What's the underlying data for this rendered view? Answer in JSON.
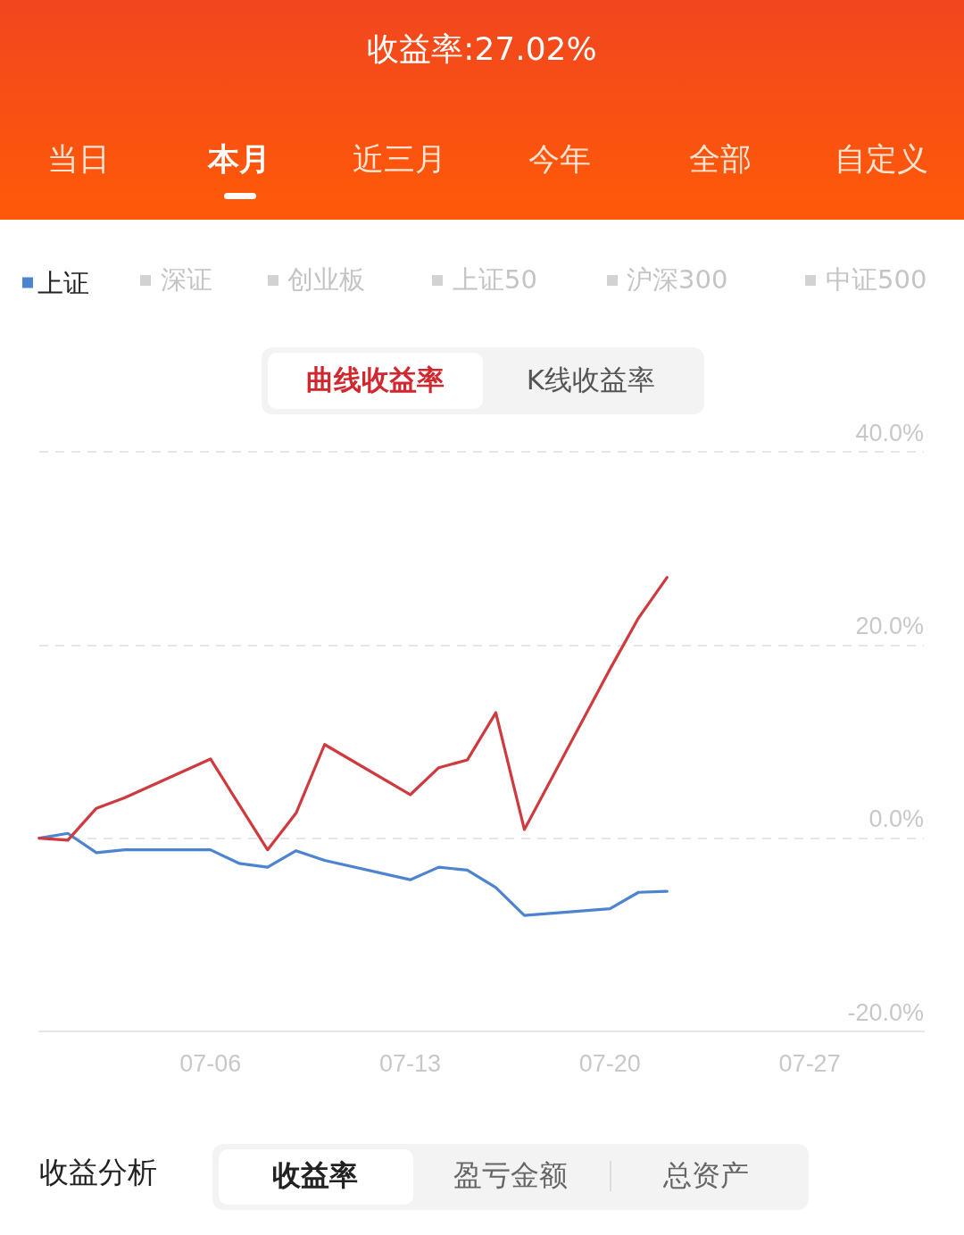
{
  "chart_data": {
    "type": "line",
    "title": "收益率:27.02%",
    "x": [
      "--06-30",
      "--07-01",
      "--07-02",
      "--07-03",
      "--07-06",
      "--07-07",
      "--07-08",
      "--07-09",
      "--07-10",
      "--07-13",
      "--07-14",
      "--07-15",
      "--07-16",
      "--07-17",
      "--07-20",
      "--07-21",
      "--07-22"
    ],
    "series": [
      {
        "name": "上证",
        "color": "#4d84d0",
        "values": [
          0,
          0.5,
          -1.5,
          -1.2,
          -1.2,
          -2.6,
          -3.0,
          -1.3,
          -2.3,
          -4.3,
          -3.0,
          -3.3,
          -5.1,
          -8.0,
          -7.3,
          -5.6,
          -5.5
        ]
      },
      {
        "color": "#cf3a3e",
        "values": [
          0,
          -0.2,
          3.1,
          4.2,
          8.2,
          3.5,
          -1.2,
          2.6,
          9.7,
          4.5,
          7.3,
          8.1,
          13.0,
          0.9,
          17.5,
          22.8,
          27.0
        ]
      }
    ],
    "xlim": [
      "--06-30",
      "--07-31"
    ],
    "xticks": [
      {
        "value": "--07-06",
        "label": "07-06"
      },
      {
        "value": "--07-13",
        "label": "07-13"
      },
      {
        "value": "--07-20",
        "label": "07-20"
      },
      {
        "value": "--07-27",
        "label": "07-27"
      }
    ],
    "ylim": [
      -20,
      40
    ],
    "yticks": [
      {
        "value": -20,
        "label": "-20.0%"
      },
      {
        "value": 0,
        "label": "0.0%"
      },
      {
        "value": 20,
        "label": "20.0%"
      },
      {
        "value": 40,
        "label": "40.0%"
      }
    ],
    "grid": "y",
    "legend": "top left",
    "marker": "none",
    "line_style": "solid",
    "annotations": [
      "当日",
      "本月",
      "近三月",
      "今年",
      "全部",
      "自定义",
      "深证",
      "创业板",
      "上证50",
      "沪深300",
      "中证500",
      "曲线收益率",
      "K线收益率",
      "收益分析",
      "收益率",
      "盈亏金额",
      "总资产"
    ]
  }
}
